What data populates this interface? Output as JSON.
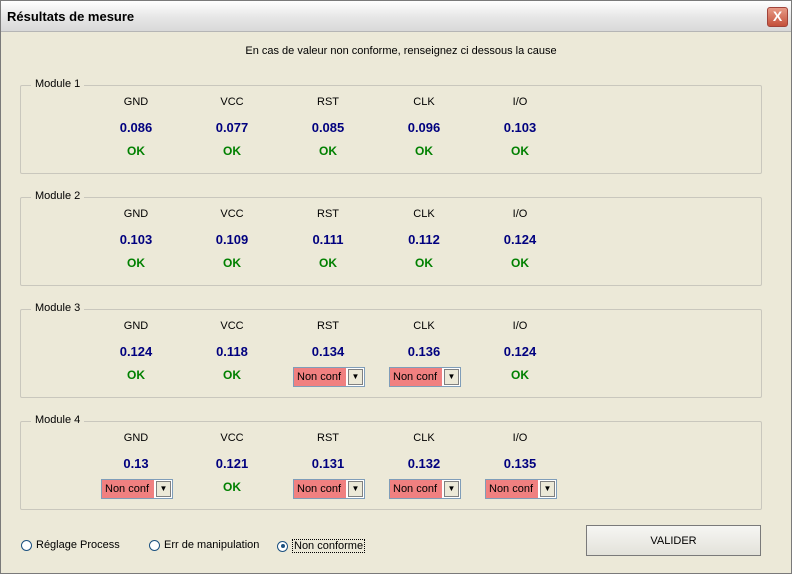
{
  "window": {
    "title": "Résultats de mesure",
    "close_label": "X"
  },
  "instruction": "En cas de valeur non conforme, renseignez ci dessous la cause",
  "columns": [
    "GND",
    "VCC",
    "RST",
    "CLK",
    "I/O"
  ],
  "modules": [
    {
      "name": "Module 1",
      "values": [
        "0.086",
        "0.077",
        "0.085",
        "0.096",
        "0.103"
      ],
      "status": [
        "OK",
        "OK",
        "OK",
        "OK",
        "OK"
      ]
    },
    {
      "name": "Module 2",
      "values": [
        "0.103",
        "0.109",
        "0.111",
        "0.112",
        "0.124"
      ],
      "status": [
        "OK",
        "OK",
        "OK",
        "OK",
        "OK"
      ]
    },
    {
      "name": "Module 3",
      "values": [
        "0.124",
        "0.118",
        "0.134",
        "0.136",
        "0.124"
      ],
      "status": [
        "OK",
        "OK",
        "Non conf",
        "Non conf",
        "OK"
      ]
    },
    {
      "name": "Module 4",
      "values": [
        "0.13",
        "0.121",
        "0.131",
        "0.132",
        "0.135"
      ],
      "status": [
        "Non conf",
        "OK",
        "Non conf",
        "Non conf",
        "Non conf"
      ]
    }
  ],
  "radios": [
    {
      "label": "Réglage Process",
      "checked": false
    },
    {
      "label": "Err de manipulation",
      "checked": false
    },
    {
      "label": "Non conforme",
      "checked": true
    }
  ],
  "validate_label": "VALIDER",
  "colors": {
    "value": "#00007f",
    "ok": "#008000",
    "nonconf_bg": "#f08080"
  }
}
